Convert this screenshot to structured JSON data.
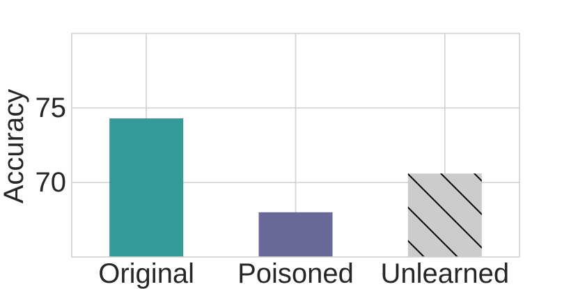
{
  "chart_data": {
    "type": "bar",
    "title": "",
    "xlabel": "",
    "ylabel": "Accuracy",
    "categories": [
      "Original",
      "Poisoned",
      "Unlearned"
    ],
    "values": [
      74.3,
      68.0,
      70.6
    ],
    "ylim": [
      65,
      80
    ],
    "yticks": [
      70,
      75
    ],
    "ytick_labels": [
      "70",
      "75"
    ],
    "grid": true,
    "bar_colors": [
      "#339c98",
      "#686899",
      "#cccccc"
    ],
    "bar_patterns": [
      "solid",
      "solid",
      "diagonal-hatch"
    ],
    "grid_color": "#d0d0d0"
  }
}
